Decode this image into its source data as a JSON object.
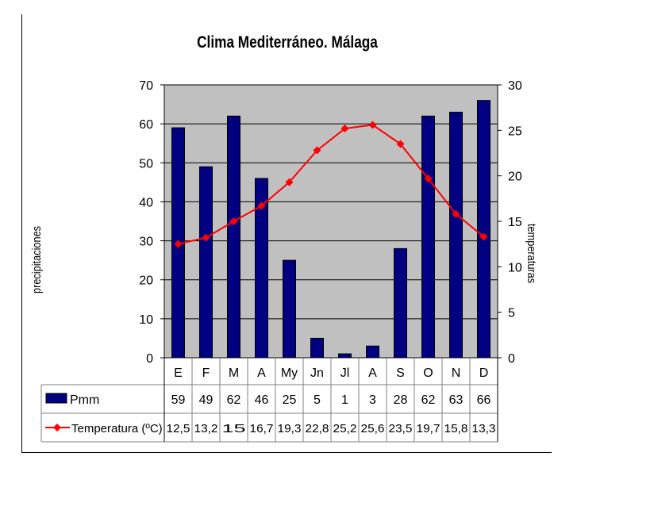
{
  "chart_data": {
    "type": "bar",
    "title": "Clima Mediterráneo. Málaga",
    "categories": [
      "E",
      "F",
      "M",
      "A",
      "My",
      "Jn",
      "Jl",
      "A",
      "S",
      "O",
      "N",
      "D"
    ],
    "series": [
      {
        "name": "Pmm",
        "type": "bar",
        "axis": "left",
        "values": [
          59,
          49,
          62,
          46,
          25,
          5,
          1,
          3,
          28,
          62,
          63,
          66
        ]
      },
      {
        "name": "Temperatura (ºC)",
        "type": "line",
        "axis": "right",
        "values": [
          12.5,
          13.2,
          15,
          16.7,
          19.3,
          22.8,
          25.2,
          25.6,
          23.5,
          19.7,
          15.8,
          13.3
        ]
      }
    ],
    "table_values": {
      "Pmm": [
        "59",
        "49",
        "62",
        "46",
        "25",
        "5",
        "1",
        "3",
        "28",
        "62",
        "63",
        "66"
      ],
      "Temperatura (ºC)": [
        "12,5",
        "13,2",
        "15",
        "16,7",
        "19,3",
        "22,8",
        "25,2",
        "25,6",
        "23,5",
        "19,7",
        "15,8",
        "13,3"
      ]
    },
    "ylabel": "precipitaciones",
    "y2label": "temperaturas",
    "ylim": [
      0,
      70
    ],
    "y2lim": [
      0,
      30
    ],
    "yticks": [
      0,
      10,
      20,
      30,
      40,
      50,
      60,
      70
    ],
    "y2ticks": [
      0,
      5,
      10,
      15,
      20,
      25,
      30
    ],
    "grid": true,
    "legend": "data-table",
    "colors": {
      "bars": "#000080",
      "line": "#ff0000",
      "plot_bg": "#c0c0c0"
    }
  }
}
